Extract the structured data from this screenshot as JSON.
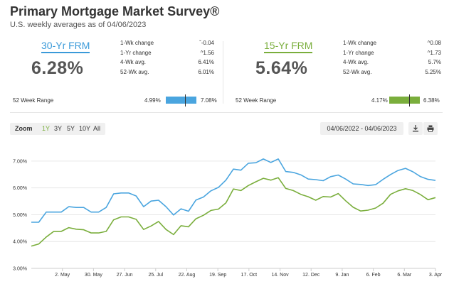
{
  "header": {
    "title": "Primary Mortgage Market Survey®",
    "subtitle": "U.S. weekly averages as of 04/06/2023"
  },
  "frm30": {
    "label": "30-Yr FRM",
    "value": "6.28%",
    "stats": [
      {
        "label": "1-Wk change",
        "value": "-0.04",
        "arrow": "down"
      },
      {
        "label": "1-Yr change",
        "value": "1.56",
        "arrow": "up"
      },
      {
        "label": "4-Wk avg.",
        "value": "6.41%"
      },
      {
        "label": "52-Wk avg.",
        "value": "6.01%"
      }
    ],
    "range": {
      "label": "52 Week Range",
      "low": "4.99%",
      "high": "7.08%",
      "position": 0.62
    },
    "color": "#3a9ad9"
  },
  "frm15": {
    "label": "15-Yr FRM",
    "value": "5.64%",
    "stats": [
      {
        "label": "1-Wk change",
        "value": "0.08",
        "arrow": "up"
      },
      {
        "label": "1-Yr change",
        "value": "1.73",
        "arrow": "up"
      },
      {
        "label": "4-Wk avg.",
        "value": "5.7%"
      },
      {
        "label": "52-Wk avg.",
        "value": "5.25%"
      }
    ],
    "range": {
      "label": "52 Week Range",
      "low": "4.17%",
      "high": "6.38%",
      "position": 0.66
    },
    "color": "#7aae3c"
  },
  "controls": {
    "zoom_label": "Zoom",
    "zoom_options": [
      "1Y",
      "3Y",
      "5Y",
      "10Y",
      "All"
    ],
    "active_zoom": "1Y",
    "date_range": "04/06/2022 - 04/06/2023",
    "download_icon": "download-icon",
    "print_icon": "printer-icon"
  },
  "chart_data": {
    "type": "line",
    "ylim": [
      3.0,
      7.5
    ],
    "y_ticks": [
      "3.00%",
      "4.00%",
      "5.00%",
      "6.00%",
      "7.00%"
    ],
    "y_tick_values": [
      3,
      4,
      5,
      6,
      7
    ],
    "x_ticks": [
      "2. May",
      "30. May",
      "27. Jun",
      "25. Jul",
      "22. Aug",
      "19. Sep",
      "17. Oct",
      "14. Nov",
      "12. Dec",
      "9. Jan",
      "6. Feb",
      "6. Mar",
      "3. Apr"
    ],
    "x_tick_weeks": [
      4,
      8,
      12,
      16,
      20,
      24,
      28,
      32,
      36,
      40,
      44,
      48,
      52
    ],
    "weeks_total": 52,
    "grid": true,
    "legend": "none",
    "series": [
      {
        "color": "#4aa5df",
        "values": [
          4.72,
          4.72,
          5.1,
          5.1,
          5.1,
          5.3,
          5.27,
          5.27,
          5.1,
          5.1,
          5.27,
          5.78,
          5.81,
          5.81,
          5.7,
          5.3,
          5.51,
          5.54,
          5.3,
          4.99,
          5.22,
          5.13,
          5.55,
          5.66,
          5.89,
          6.02,
          6.29,
          6.7,
          6.66,
          6.92,
          6.94,
          7.08,
          6.95,
          7.08,
          6.61,
          6.58,
          6.49,
          6.33,
          6.31,
          6.27,
          6.42,
          6.48,
          6.33,
          6.15,
          6.13,
          6.09,
          6.12,
          6.32,
          6.5,
          6.65,
          6.73,
          6.6,
          6.42,
          6.32,
          6.28
        ]
      },
      {
        "color": "#7aae3c",
        "values": [
          3.83,
          3.91,
          4.17,
          4.38,
          4.38,
          4.52,
          4.46,
          4.44,
          4.32,
          4.32,
          4.38,
          4.81,
          4.92,
          4.92,
          4.83,
          4.45,
          4.58,
          4.75,
          4.45,
          4.26,
          4.59,
          4.55,
          4.85,
          4.98,
          5.16,
          5.21,
          5.44,
          5.96,
          5.9,
          6.09,
          6.23,
          6.36,
          6.29,
          6.38,
          5.98,
          5.9,
          5.76,
          5.67,
          5.54,
          5.68,
          5.66,
          5.79,
          5.52,
          5.28,
          5.14,
          5.17,
          5.25,
          5.43,
          5.76,
          5.89,
          5.97,
          5.9,
          5.75,
          5.56,
          5.64
        ]
      }
    ]
  }
}
